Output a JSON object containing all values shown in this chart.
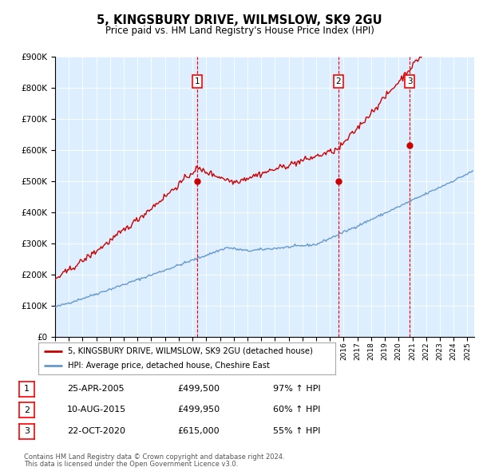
{
  "title1": "5, KINGSBURY DRIVE, WILMSLOW, SK9 2GU",
  "title2": "Price paid vs. HM Land Registry's House Price Index (HPI)",
  "legend_line1": "5, KINGSBURY DRIVE, WILMSLOW, SK9 2GU (detached house)",
  "legend_line2": "HPI: Average price, detached house, Cheshire East",
  "footer1": "Contains HM Land Registry data © Crown copyright and database right 2024.",
  "footer2": "This data is licensed under the Open Government Licence v3.0.",
  "purchases": [
    {
      "num": 1,
      "date_str": "25-APR-2005",
      "price": 499500,
      "year": 2005.32,
      "pct": "97% ↑ HPI"
    },
    {
      "num": 2,
      "date_str": "10-AUG-2015",
      "price": 499950,
      "year": 2015.61,
      "pct": "60% ↑ HPI"
    },
    {
      "num": 3,
      "date_str": "22-OCT-2020",
      "price": 615000,
      "year": 2020.81,
      "pct": "55% ↑ HPI"
    }
  ],
  "red_color": "#cc0000",
  "blue_color": "#6699cc",
  "bg_color": "#ddeeff",
  "ylim": [
    0,
    900000
  ],
  "xlim_start": 1995.0,
  "xlim_end": 2025.5,
  "yticks": [
    0,
    100000,
    200000,
    300000,
    400000,
    500000,
    600000,
    700000,
    800000,
    900000
  ]
}
